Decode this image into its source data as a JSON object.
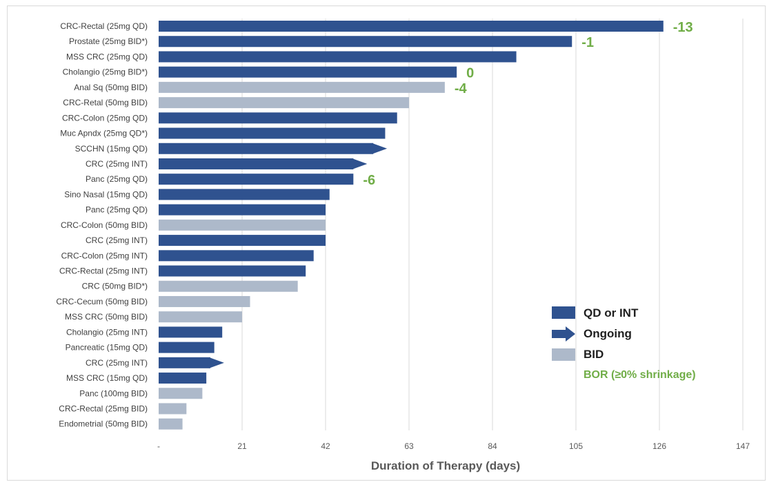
{
  "chart_data": {
    "type": "bar",
    "orientation": "horizontal",
    "xlabel": "Duration of Therapy (days)",
    "xlim": [
      0,
      147
    ],
    "xticks": [
      {
        "value": 0,
        "label": "-"
      },
      {
        "value": 21,
        "label": "21"
      },
      {
        "value": 42,
        "label": "42"
      },
      {
        "value": 63,
        "label": "63"
      },
      {
        "value": 84,
        "label": "84"
      },
      {
        "value": 105,
        "label": "105"
      },
      {
        "value": 126,
        "label": "126"
      },
      {
        "value": 147,
        "label": "147"
      }
    ],
    "grid": "vertical",
    "colors": {
      "qd_int": "#2f528f",
      "bid": "#adb9ca",
      "bor": "#70ad47",
      "grid": "#d9d9d9"
    },
    "bars": [
      {
        "label": "CRC-Rectal (25mg QD)",
        "value": 127,
        "group": "qd_int",
        "ongoing": false,
        "bor": "-13"
      },
      {
        "label": "Prostate (25mg BID*)",
        "value": 104,
        "group": "qd_int",
        "ongoing": false,
        "bor": "-1"
      },
      {
        "label": "MSS CRC (25mg QD)",
        "value": 90,
        "group": "qd_int",
        "ongoing": false,
        "bor": ""
      },
      {
        "label": "Cholangio (25mg BID*)",
        "value": 75,
        "group": "qd_int",
        "ongoing": false,
        "bor": "0"
      },
      {
        "label": "Anal Sq (50mg BID)",
        "value": 72,
        "group": "bid",
        "ongoing": false,
        "bor": "-4"
      },
      {
        "label": "CRC-Retal (50mg BID)",
        "value": 63,
        "group": "bid",
        "ongoing": false,
        "bor": ""
      },
      {
        "label": "CRC-Colon (25mg QD)",
        "value": 60,
        "group": "qd_int",
        "ongoing": false,
        "bor": ""
      },
      {
        "label": "Muc Apndx (25mg QD*)",
        "value": 57,
        "group": "qd_int",
        "ongoing": false,
        "bor": ""
      },
      {
        "label": "SCCHN (15mg QD)",
        "value": 54,
        "group": "qd_int",
        "ongoing": true,
        "bor": ""
      },
      {
        "label": "CRC (25mg INT)",
        "value": 49,
        "group": "qd_int",
        "ongoing": true,
        "bor": ""
      },
      {
        "label": "Panc (25mg QD)",
        "value": 49,
        "group": "qd_int",
        "ongoing": false,
        "bor": "-6"
      },
      {
        "label": "Sino Nasal (15mg QD)",
        "value": 43,
        "group": "qd_int",
        "ongoing": false,
        "bor": ""
      },
      {
        "label": "Panc (25mg QD)",
        "value": 42,
        "group": "qd_int",
        "ongoing": false,
        "bor": ""
      },
      {
        "label": "CRC-Colon (50mg BID)",
        "value": 42,
        "group": "bid",
        "ongoing": false,
        "bor": ""
      },
      {
        "label": "CRC (25mg INT)",
        "value": 42,
        "group": "qd_int",
        "ongoing": false,
        "bor": ""
      },
      {
        "label": "CRC-Colon (25mg INT)",
        "value": 39,
        "group": "qd_int",
        "ongoing": false,
        "bor": ""
      },
      {
        "label": "CRC-Rectal (25mg INT)",
        "value": 37,
        "group": "qd_int",
        "ongoing": false,
        "bor": ""
      },
      {
        "label": "CRC (50mg BID*)",
        "value": 35,
        "group": "bid",
        "ongoing": false,
        "bor": ""
      },
      {
        "label": "CRC-Cecum (50mg BID)",
        "value": 23,
        "group": "bid",
        "ongoing": false,
        "bor": ""
      },
      {
        "label": "MSS CRC (50mg BID)",
        "value": 21,
        "group": "bid",
        "ongoing": false,
        "bor": ""
      },
      {
        "label": "Cholangio (25mg INT)",
        "value": 16,
        "group": "qd_int",
        "ongoing": false,
        "bor": ""
      },
      {
        "label": "Pancreatic (15mg QD)",
        "value": 14,
        "group": "qd_int",
        "ongoing": false,
        "bor": ""
      },
      {
        "label": "CRC (25mg INT)",
        "value": 13,
        "group": "qd_int",
        "ongoing": true,
        "bor": ""
      },
      {
        "label": "MSS CRC (15mg QD)",
        "value": 12,
        "group": "qd_int",
        "ongoing": false,
        "bor": ""
      },
      {
        "label": "Panc (100mg BID)",
        "value": 11,
        "group": "bid",
        "ongoing": false,
        "bor": ""
      },
      {
        "label": "CRC-Rectal (25mg BID)",
        "value": 7,
        "group": "bid",
        "ongoing": false,
        "bor": ""
      },
      {
        "label": "Endometrial (50mg BID)",
        "value": 6,
        "group": "bid",
        "ongoing": false,
        "bor": ""
      }
    ],
    "legend": {
      "placement": "bottom-right",
      "qd_int": "QD or INT",
      "ongoing": "Ongoing",
      "bid": "BID",
      "bor": "BOR (≥0% shrinkage)"
    }
  }
}
